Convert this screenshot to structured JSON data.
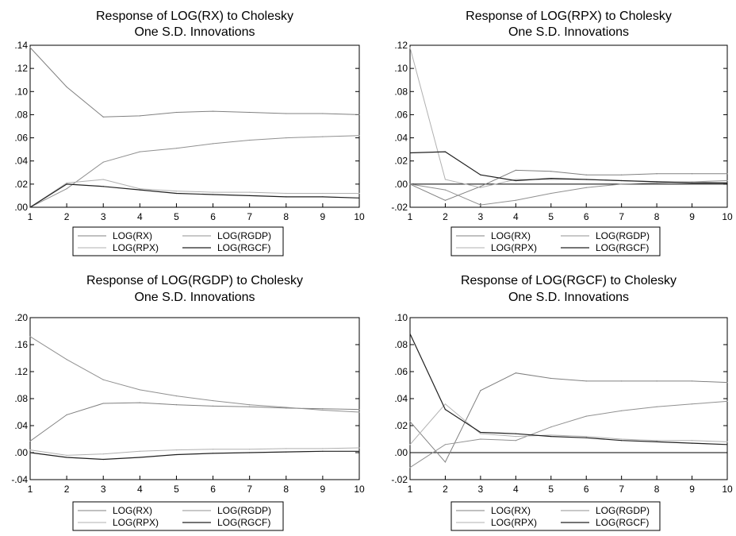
{
  "chart_data": [
    {
      "type": "line",
      "title": "Response of LOG(RX) to Cholesky",
      "subtitle": "One S.D. Innovations",
      "x": [
        1,
        2,
        3,
        4,
        5,
        6,
        7,
        8,
        9,
        10
      ],
      "ylim": [
        0,
        0.14
      ],
      "yticks": [
        0,
        0.02,
        0.04,
        0.06,
        0.08,
        0.1,
        0.12,
        0.14
      ],
      "ytick_labels": [
        ".00",
        ".02",
        ".04",
        ".06",
        ".08",
        ".10",
        ".12",
        ".14"
      ],
      "grid": false,
      "legend": [
        "LOG(RX)",
        "LOG(RGDP)",
        "LOG(RPX)",
        "LOG(RGCF)"
      ],
      "series": [
        {
          "name": "LOG(RX)",
          "values": [
            0.138,
            0.104,
            0.078,
            0.079,
            0.082,
            0.083,
            0.082,
            0.081,
            0.081,
            0.08
          ]
        },
        {
          "name": "LOG(RGDP)",
          "values": [
            0.0,
            0.016,
            0.039,
            0.048,
            0.051,
            0.055,
            0.058,
            0.06,
            0.061,
            0.062
          ]
        },
        {
          "name": "LOG(RPX)",
          "values": [
            0.0,
            0.021,
            0.024,
            0.016,
            0.014,
            0.013,
            0.013,
            0.012,
            0.012,
            0.012
          ]
        },
        {
          "name": "LOG(RGCF)",
          "values": [
            0.0,
            0.02,
            0.018,
            0.015,
            0.012,
            0.011,
            0.01,
            0.009,
            0.009,
            0.008
          ]
        }
      ],
      "colors": [
        "#808080",
        "#909090",
        "#b0b0b0",
        "#202020"
      ]
    },
    {
      "type": "line",
      "title": "Response of LOG(RPX) to Cholesky",
      "subtitle": "One S.D. Innovations",
      "x": [
        1,
        2,
        3,
        4,
        5,
        6,
        7,
        8,
        9,
        10
      ],
      "ylim": [
        -0.02,
        0.12
      ],
      "yticks": [
        -0.02,
        0,
        0.02,
        0.04,
        0.06,
        0.08,
        0.1,
        0.12
      ],
      "ytick_labels": [
        "-.02",
        ".00",
        ".02",
        ".04",
        ".06",
        ".08",
        ".10",
        ".12"
      ],
      "grid": false,
      "zero_line": true,
      "legend": [
        "LOG(RX)",
        "LOG(RGDP)",
        "LOG(RPX)",
        "LOG(RGCF)"
      ],
      "series": [
        {
          "name": "LOG(RX)",
          "values": [
            0.0,
            -0.014,
            -0.002,
            0.012,
            0.011,
            0.008,
            0.008,
            0.009,
            0.009,
            0.009
          ]
        },
        {
          "name": "LOG(RGDP)",
          "values": [
            0.0,
            -0.005,
            -0.018,
            -0.014,
            -0.008,
            -0.003,
            0.0,
            0.001,
            0.002,
            0.003
          ]
        },
        {
          "name": "LOG(RPX)",
          "values": [
            0.118,
            0.004,
            -0.003,
            0.004,
            0.004,
            0.004,
            0.003,
            0.002,
            0.002,
            0.001
          ]
        },
        {
          "name": "LOG(RGCF)",
          "values": [
            0.027,
            0.028,
            0.008,
            0.003,
            0.005,
            0.004,
            0.003,
            0.002,
            0.001,
            0.001
          ]
        }
      ],
      "colors": [
        "#808080",
        "#909090",
        "#b0b0b0",
        "#202020"
      ]
    },
    {
      "type": "line",
      "title": "Response of LOG(RGDP) to Cholesky",
      "subtitle": "One S.D. Innovations",
      "x": [
        1,
        2,
        3,
        4,
        5,
        6,
        7,
        8,
        9,
        10
      ],
      "ylim": [
        -0.04,
        0.2
      ],
      "yticks": [
        -0.04,
        0,
        0.04,
        0.08,
        0.12,
        0.16,
        0.2
      ],
      "ytick_labels": [
        "-.04",
        ".00",
        ".04",
        ".08",
        ".12",
        ".16",
        ".20"
      ],
      "grid": false,
      "zero_line": false,
      "legend": [
        "LOG(RX)",
        "LOG(RGDP)",
        "LOG(RPX)",
        "LOG(RGCF)"
      ],
      "series": [
        {
          "name": "LOG(RX)",
          "values": [
            0.017,
            0.056,
            0.073,
            0.074,
            0.071,
            0.069,
            0.068,
            0.066,
            0.065,
            0.064
          ]
        },
        {
          "name": "LOG(RGDP)",
          "values": [
            0.172,
            0.138,
            0.108,
            0.093,
            0.084,
            0.077,
            0.071,
            0.067,
            0.063,
            0.06
          ]
        },
        {
          "name": "LOG(RPX)",
          "values": [
            0.004,
            -0.004,
            -0.002,
            0.002,
            0.004,
            0.005,
            0.005,
            0.006,
            0.006,
            0.007
          ]
        },
        {
          "name": "LOG(RGCF)",
          "values": [
            0.0,
            -0.007,
            -0.01,
            -0.007,
            -0.003,
            -0.001,
            0.0,
            0.001,
            0.002,
            0.002
          ]
        }
      ],
      "colors": [
        "#808080",
        "#909090",
        "#b0b0b0",
        "#202020"
      ]
    },
    {
      "type": "line",
      "title": "Response of LOG(RGCF) to Cholesky",
      "subtitle": "One S.D. Innovations",
      "x": [
        1,
        2,
        3,
        4,
        5,
        6,
        7,
        8,
        9,
        10
      ],
      "ylim": [
        -0.02,
        0.1
      ],
      "yticks": [
        -0.02,
        0,
        0.02,
        0.04,
        0.06,
        0.08,
        0.1
      ],
      "ytick_labels": [
        "-.02",
        ".00",
        ".02",
        ".04",
        ".06",
        ".08",
        ".10"
      ],
      "grid": false,
      "zero_line": true,
      "legend": [
        "LOG(RX)",
        "LOG(RGDP)",
        "LOG(RPX)",
        "LOG(RGCF)"
      ],
      "series": [
        {
          "name": "LOG(RX)",
          "values": [
            0.023,
            -0.007,
            0.046,
            0.059,
            0.055,
            0.053,
            0.053,
            0.053,
            0.053,
            0.052
          ]
        },
        {
          "name": "LOG(RGDP)",
          "values": [
            -0.011,
            0.006,
            0.01,
            0.009,
            0.019,
            0.027,
            0.031,
            0.034,
            0.036,
            0.038
          ]
        },
        {
          "name": "LOG(RPX)",
          "values": [
            0.006,
            0.036,
            0.014,
            0.012,
            0.013,
            0.012,
            0.01,
            0.009,
            0.009,
            0.008
          ]
        },
        {
          "name": "LOG(RGCF)",
          "values": [
            0.088,
            0.032,
            0.015,
            0.014,
            0.012,
            0.011,
            0.009,
            0.008,
            0.007,
            0.006
          ]
        }
      ],
      "colors": [
        "#808080",
        "#909090",
        "#b0b0b0",
        "#202020"
      ]
    }
  ]
}
